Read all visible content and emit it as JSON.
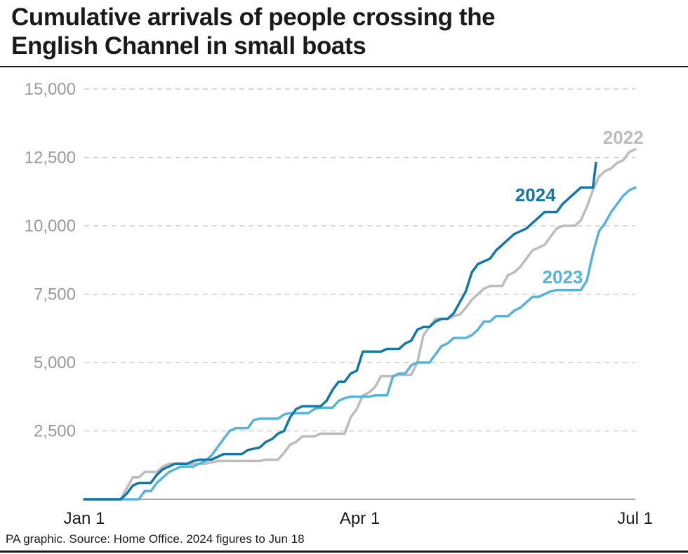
{
  "title_lines": [
    "Cumulative arrivals of people crossing the",
    "English Channel in small boats"
  ],
  "footer": "PA graphic. Source: Home Office. 2024 figures to Jun 18",
  "colors": {
    "2022": "#bcbcbc",
    "2023": "#56b4dc",
    "2024": "#1478a6",
    "grid": "#cccccc",
    "axis": "#888888",
    "tick_y": "#9a9a9a"
  },
  "chart_data": {
    "type": "line",
    "title": "Cumulative arrivals of people crossing the English Channel in small boats",
    "x_ticks": [
      "Jan 1",
      "Apr 1",
      "Jul 1"
    ],
    "y_ticks": [
      "2,500",
      "5,000",
      "7,500",
      "10,000",
      "12,500",
      "15,000"
    ],
    "y_tick_values": [
      2500,
      5000,
      7500,
      10000,
      12500,
      15000
    ],
    "ylim": [
      0,
      15000
    ],
    "grid": "horizontal dashed",
    "x_unit": "day of year (Jan 1 = 0, Apr 1 = 91, Jul 1 = 182)",
    "xlim": [
      0,
      182
    ],
    "series": [
      {
        "name": "2022",
        "color": "#bcbcbc",
        "points": [
          [
            0,
            0
          ],
          [
            12,
            0
          ],
          [
            14,
            400
          ],
          [
            16,
            800
          ],
          [
            18,
            800
          ],
          [
            20,
            1000
          ],
          [
            24,
            1000
          ],
          [
            26,
            1200
          ],
          [
            28,
            1300
          ],
          [
            34,
            1300
          ],
          [
            36,
            1300
          ],
          [
            40,
            1300
          ],
          [
            44,
            1400
          ],
          [
            58,
            1400
          ],
          [
            60,
            1450
          ],
          [
            64,
            1450
          ],
          [
            66,
            1700
          ],
          [
            68,
            2000
          ],
          [
            70,
            2100
          ],
          [
            72,
            2300
          ],
          [
            76,
            2300
          ],
          [
            78,
            2400
          ],
          [
            80,
            2400
          ],
          [
            82,
            2400
          ],
          [
            84,
            2400
          ],
          [
            86,
            2400
          ],
          [
            88,
            3000
          ],
          [
            90,
            3300
          ],
          [
            92,
            3800
          ],
          [
            94,
            3900
          ],
          [
            96,
            4100
          ],
          [
            98,
            4500
          ],
          [
            102,
            4500
          ],
          [
            104,
            4550
          ],
          [
            108,
            4550
          ],
          [
            110,
            5000
          ],
          [
            112,
            6000
          ],
          [
            114,
            6300
          ],
          [
            116,
            6600
          ],
          [
            120,
            6600
          ],
          [
            122,
            6700
          ],
          [
            124,
            6750
          ],
          [
            126,
            7000
          ],
          [
            128,
            7300
          ],
          [
            130,
            7500
          ],
          [
            132,
            7700
          ],
          [
            134,
            7800
          ],
          [
            138,
            7800
          ],
          [
            140,
            8200
          ],
          [
            142,
            8300
          ],
          [
            144,
            8500
          ],
          [
            146,
            8800
          ],
          [
            148,
            9100
          ],
          [
            150,
            9200
          ],
          [
            152,
            9300
          ],
          [
            154,
            9600
          ],
          [
            156,
            9900
          ],
          [
            158,
            10000
          ],
          [
            162,
            10000
          ],
          [
            164,
            10200
          ],
          [
            166,
            10700
          ],
          [
            168,
            11300
          ],
          [
            170,
            11800
          ],
          [
            172,
            12000
          ],
          [
            174,
            12100
          ],
          [
            176,
            12300
          ],
          [
            178,
            12400
          ],
          [
            180,
            12700
          ],
          [
            182,
            12800
          ]
        ]
      },
      {
        "name": "2023",
        "color": "#56b4dc",
        "points": [
          [
            0,
            0
          ],
          [
            18,
            0
          ],
          [
            20,
            300
          ],
          [
            22,
            300
          ],
          [
            24,
            600
          ],
          [
            26,
            800
          ],
          [
            28,
            1000
          ],
          [
            30,
            1100
          ],
          [
            32,
            1200
          ],
          [
            34,
            1200
          ],
          [
            36,
            1200
          ],
          [
            38,
            1300
          ],
          [
            40,
            1400
          ],
          [
            42,
            1600
          ],
          [
            44,
            1900
          ],
          [
            46,
            2200
          ],
          [
            48,
            2500
          ],
          [
            50,
            2600
          ],
          [
            54,
            2600
          ],
          [
            56,
            2900
          ],
          [
            58,
            2950
          ],
          [
            64,
            2950
          ],
          [
            66,
            3100
          ],
          [
            68,
            3150
          ],
          [
            74,
            3150
          ],
          [
            76,
            3300
          ],
          [
            78,
            3350
          ],
          [
            82,
            3350
          ],
          [
            84,
            3600
          ],
          [
            86,
            3700
          ],
          [
            88,
            3750
          ],
          [
            94,
            3750
          ],
          [
            96,
            3800
          ],
          [
            100,
            3800
          ],
          [
            102,
            4500
          ],
          [
            104,
            4600
          ],
          [
            106,
            4600
          ],
          [
            108,
            4900
          ],
          [
            110,
            5000
          ],
          [
            114,
            5000
          ],
          [
            116,
            5300
          ],
          [
            118,
            5600
          ],
          [
            120,
            5700
          ],
          [
            122,
            5900
          ],
          [
            126,
            5900
          ],
          [
            128,
            6000
          ],
          [
            130,
            6200
          ],
          [
            132,
            6500
          ],
          [
            134,
            6500
          ],
          [
            136,
            6700
          ],
          [
            140,
            6700
          ],
          [
            142,
            6900
          ],
          [
            144,
            7000
          ],
          [
            146,
            7200
          ],
          [
            148,
            7400
          ],
          [
            150,
            7400
          ],
          [
            152,
            7500
          ],
          [
            154,
            7600
          ],
          [
            156,
            7650
          ],
          [
            164,
            7650
          ],
          [
            166,
            8000
          ],
          [
            168,
            9000
          ],
          [
            170,
            9800
          ],
          [
            172,
            10100
          ],
          [
            174,
            10500
          ],
          [
            176,
            10800
          ],
          [
            178,
            11100
          ],
          [
            180,
            11300
          ],
          [
            182,
            11400
          ]
        ]
      },
      {
        "name": "2024",
        "color": "#1478a6",
        "points": [
          [
            0,
            0
          ],
          [
            12,
            0
          ],
          [
            14,
            200
          ],
          [
            16,
            500
          ],
          [
            18,
            600
          ],
          [
            22,
            600
          ],
          [
            24,
            900
          ],
          [
            26,
            1100
          ],
          [
            28,
            1200
          ],
          [
            30,
            1300
          ],
          [
            34,
            1300
          ],
          [
            36,
            1400
          ],
          [
            38,
            1450
          ],
          [
            42,
            1450
          ],
          [
            44,
            1550
          ],
          [
            46,
            1650
          ],
          [
            52,
            1650
          ],
          [
            54,
            1800
          ],
          [
            58,
            1900
          ],
          [
            60,
            2100
          ],
          [
            62,
            2200
          ],
          [
            64,
            2400
          ],
          [
            66,
            2500
          ],
          [
            68,
            3000
          ],
          [
            70,
            3300
          ],
          [
            72,
            3400
          ],
          [
            78,
            3400
          ],
          [
            80,
            3600
          ],
          [
            82,
            4000
          ],
          [
            84,
            4300
          ],
          [
            86,
            4300
          ],
          [
            88,
            4600
          ],
          [
            90,
            4700
          ],
          [
            92,
            5400
          ],
          [
            98,
            5400
          ],
          [
            100,
            5500
          ],
          [
            104,
            5500
          ],
          [
            106,
            5700
          ],
          [
            108,
            5800
          ],
          [
            110,
            6200
          ],
          [
            112,
            6300
          ],
          [
            114,
            6300
          ],
          [
            116,
            6500
          ],
          [
            118,
            6600
          ],
          [
            120,
            6600
          ],
          [
            122,
            6800
          ],
          [
            124,
            7200
          ],
          [
            126,
            7600
          ],
          [
            128,
            8300
          ],
          [
            130,
            8600
          ],
          [
            134,
            8800
          ],
          [
            136,
            9100
          ],
          [
            138,
            9300
          ],
          [
            140,
            9500
          ],
          [
            142,
            9700
          ],
          [
            144,
            9800
          ],
          [
            146,
            9900
          ],
          [
            148,
            10100
          ],
          [
            150,
            10300
          ],
          [
            152,
            10500
          ],
          [
            156,
            10500
          ],
          [
            158,
            10800
          ],
          [
            160,
            11000
          ],
          [
            162,
            11200
          ],
          [
            164,
            11400
          ],
          [
            166,
            11400
          ],
          [
            168,
            11400
          ],
          [
            169,
            12300
          ]
        ]
      }
    ],
    "series_labels": [
      "2022",
      "2023",
      "2024"
    ]
  }
}
